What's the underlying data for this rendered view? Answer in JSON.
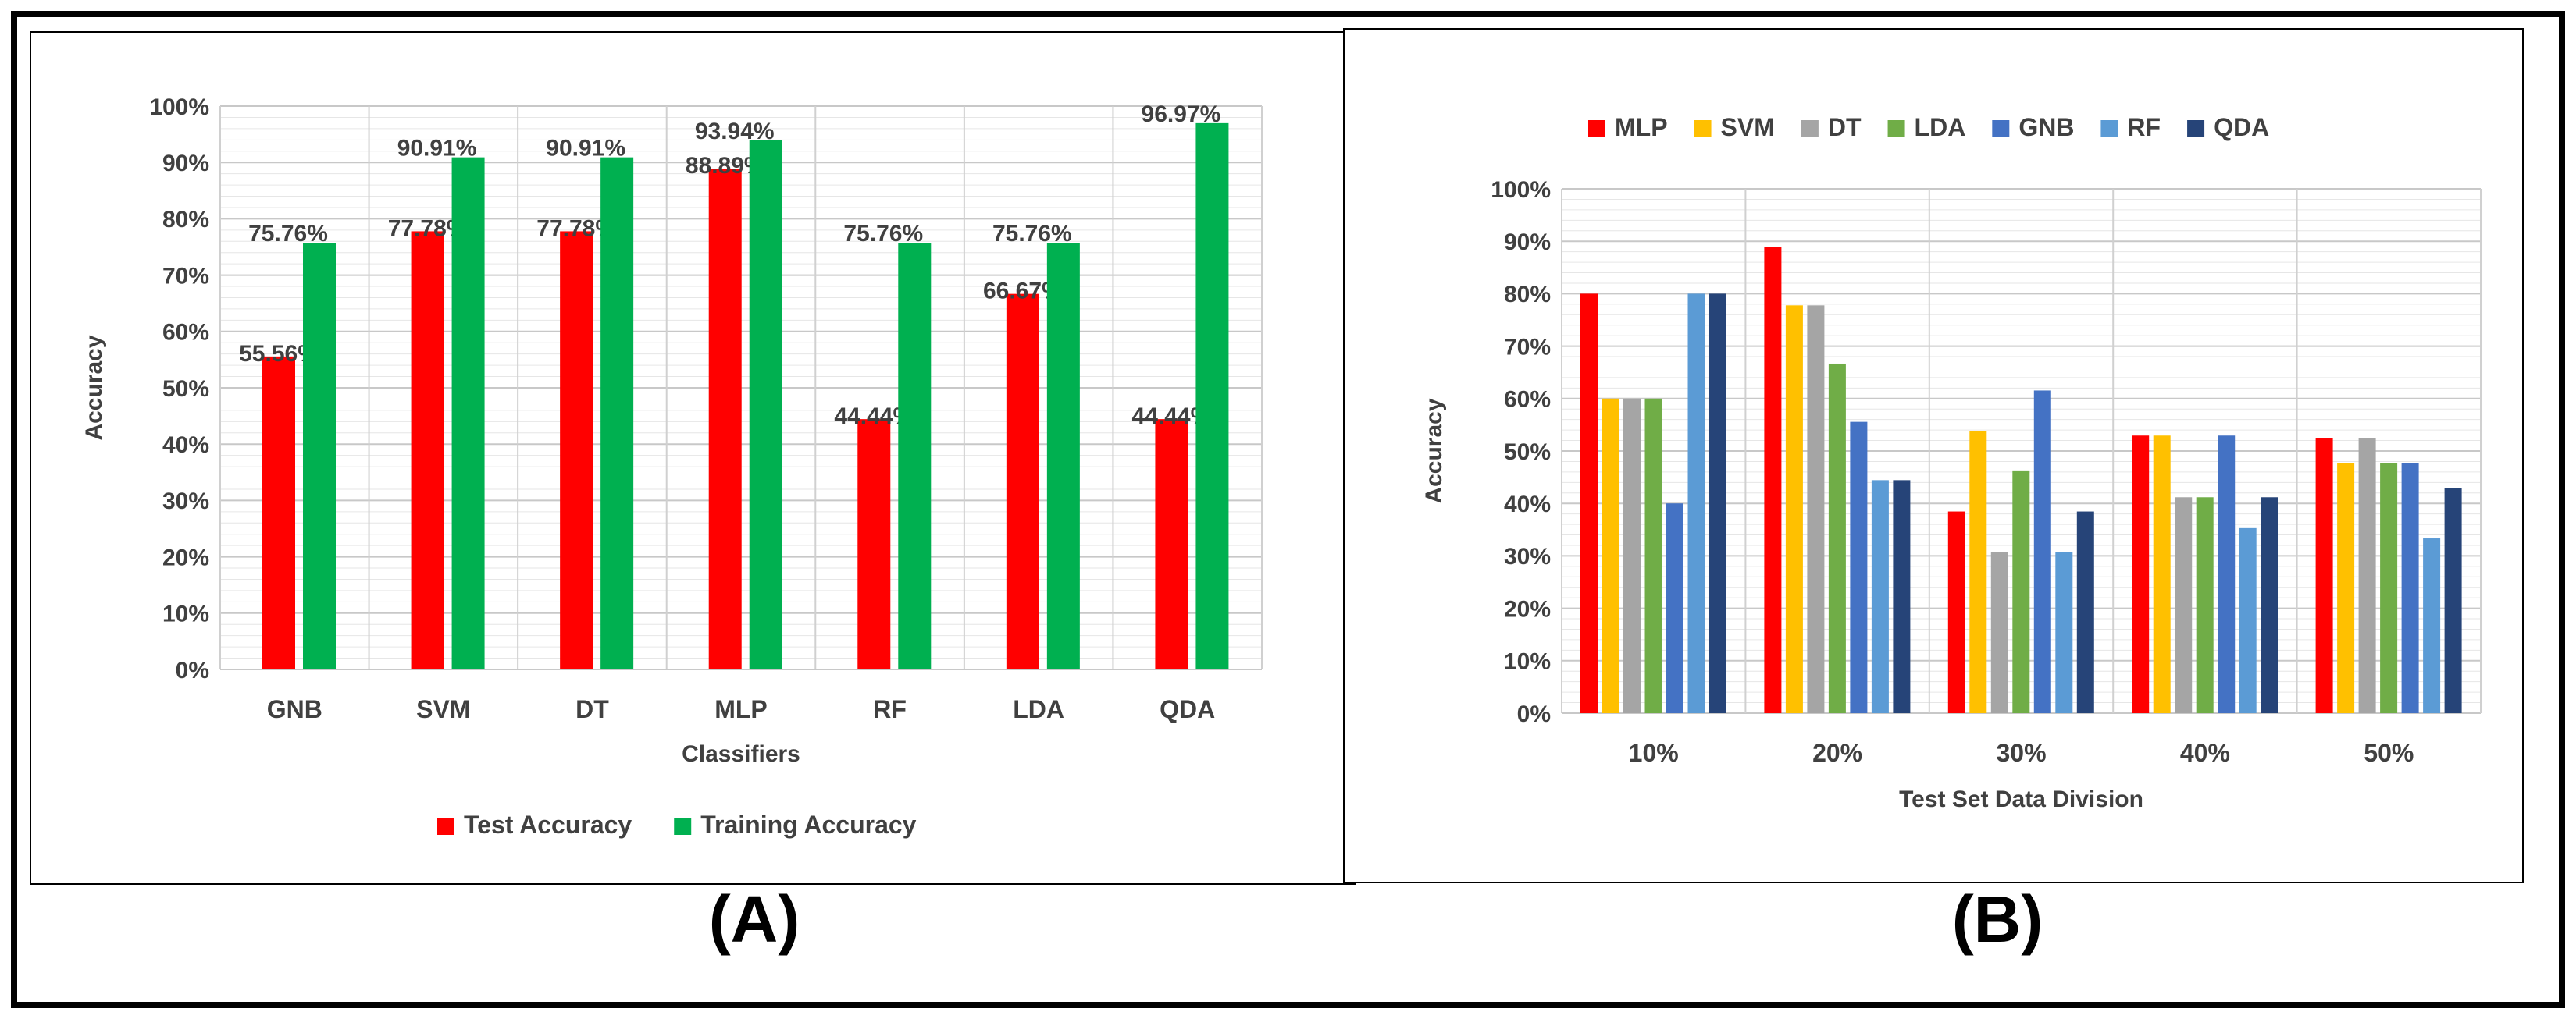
{
  "panels": {
    "a_label": "(A)",
    "b_label": "(B)"
  },
  "chart_data": [
    {
      "type": "bar",
      "xlabel": "Classifiers",
      "ylabel": "Accuracy",
      "ylim": [
        0,
        100
      ],
      "ytick_step": 10,
      "ytick_suffix": "%",
      "categories": [
        "GNB",
        "SVM",
        "DT",
        "MLP",
        "RF",
        "LDA",
        "QDA"
      ],
      "series": [
        {
          "name": "Test Accuracy",
          "color": "#ff0000",
          "values": [
            55.56,
            77.78,
            77.78,
            88.89,
            44.44,
            66.67,
            44.44
          ],
          "labels": [
            "55.56%",
            "77.78%",
            "77.78%",
            "88.89%",
            "44.44%",
            "66.67%",
            "44.44%"
          ]
        },
        {
          "name": "Training Accuracy",
          "color": "#00b050",
          "values": [
            75.76,
            90.91,
            90.91,
            93.94,
            75.76,
            75.76,
            96.97
          ],
          "labels": [
            "75.76%",
            "90.91%",
            "90.91%",
            "93.94%",
            "75.76%",
            "75.76%",
            "96.97%"
          ]
        }
      ],
      "legend": "bottom",
      "grid": true
    },
    {
      "type": "bar",
      "xlabel": "Test Set Data Division",
      "ylabel": "Accuracy",
      "ylim": [
        0,
        100
      ],
      "ytick_step": 10,
      "ytick_suffix": "%",
      "categories": [
        "10%",
        "20%",
        "30%",
        "40%",
        "50%"
      ],
      "series": [
        {
          "name": "MLP",
          "color": "#ff0000",
          "values": [
            80.0,
            88.89,
            38.46,
            52.94,
            52.38
          ]
        },
        {
          "name": "SVM",
          "color": "#ffc000",
          "values": [
            60.0,
            77.78,
            53.85,
            52.94,
            47.62
          ]
        },
        {
          "name": "DT",
          "color": "#a5a5a5",
          "values": [
            60.0,
            77.78,
            30.77,
            41.18,
            52.38
          ]
        },
        {
          "name": "LDA",
          "color": "#70ad47",
          "values": [
            60.0,
            66.67,
            46.15,
            41.18,
            47.62
          ]
        },
        {
          "name": "GNB",
          "color": "#4472c4",
          "values": [
            40.0,
            55.56,
            61.54,
            52.94,
            47.62
          ]
        },
        {
          "name": "RF",
          "color": "#5b9bd5",
          "values": [
            80.0,
            44.44,
            30.77,
            35.29,
            33.33
          ]
        },
        {
          "name": "QDA",
          "color": "#264478",
          "values": [
            80.0,
            44.44,
            38.46,
            41.18,
            42.86
          ]
        }
      ],
      "legend": "top",
      "grid": true
    }
  ]
}
